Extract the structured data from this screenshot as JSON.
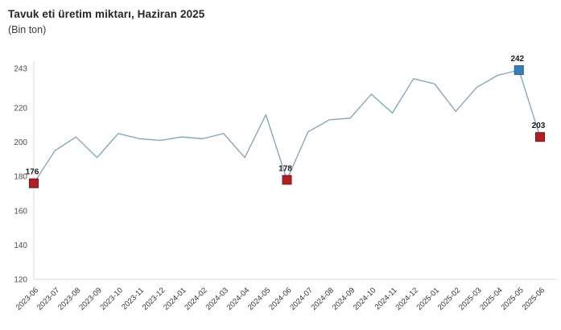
{
  "header": {
    "title": "Tavuk eti üretim miktarı, Haziran 2025",
    "subtitle": "(Bin ton)"
  },
  "colors": {
    "line": "#7ca3b8",
    "marker_red": "#b01f24",
    "marker_red_border": "#7e1519",
    "marker_blue": "#3b7cbd",
    "marker_blue_border": "#2a5d94",
    "axis": "#d9d9d9",
    "ytick_label": "#4d4d4d",
    "xtick_label": "#333333",
    "data_label": "#1a1a1a",
    "title_text": "#262626"
  },
  "chart_data": {
    "type": "line",
    "title": "Tavuk eti üretim miktarı, Haziran 2025",
    "ylabel": "Bin ton",
    "xlabel": "",
    "grid": false,
    "legend": "none",
    "ylim": [
      120,
      243
    ],
    "yticks": [
      120,
      140,
      160,
      180,
      200,
      220,
      243
    ],
    "x": [
      "2023-06",
      "2023-07",
      "2023-08",
      "2023-09",
      "2023-10",
      "2023-11",
      "2023-12",
      "2024-01",
      "2024-02",
      "2024-03",
      "2024-04",
      "2024-05",
      "2024-06",
      "2024-07",
      "2024-08",
      "2024-09",
      "2024-10",
      "2024-11",
      "2024-12",
      "2025-01",
      "2025-02",
      "2025-03",
      "2025-04",
      "2025-05",
      "2025-06"
    ],
    "values": [
      176,
      195,
      203,
      191,
      205,
      202,
      201,
      203,
      202,
      205,
      191,
      216,
      178,
      206,
      213,
      214,
      228,
      217,
      237,
      234,
      218,
      232,
      239,
      242,
      203
    ],
    "annotated_points": [
      {
        "month": "2023-06",
        "value": 176,
        "label": "176",
        "marker": "red"
      },
      {
        "month": "2024-06",
        "value": 178,
        "label": "178",
        "marker": "red"
      },
      {
        "month": "2025-05",
        "value": 242,
        "label": "242",
        "marker": "blue"
      },
      {
        "month": "2025-06",
        "value": 203,
        "label": "203",
        "marker": "red"
      }
    ]
  }
}
